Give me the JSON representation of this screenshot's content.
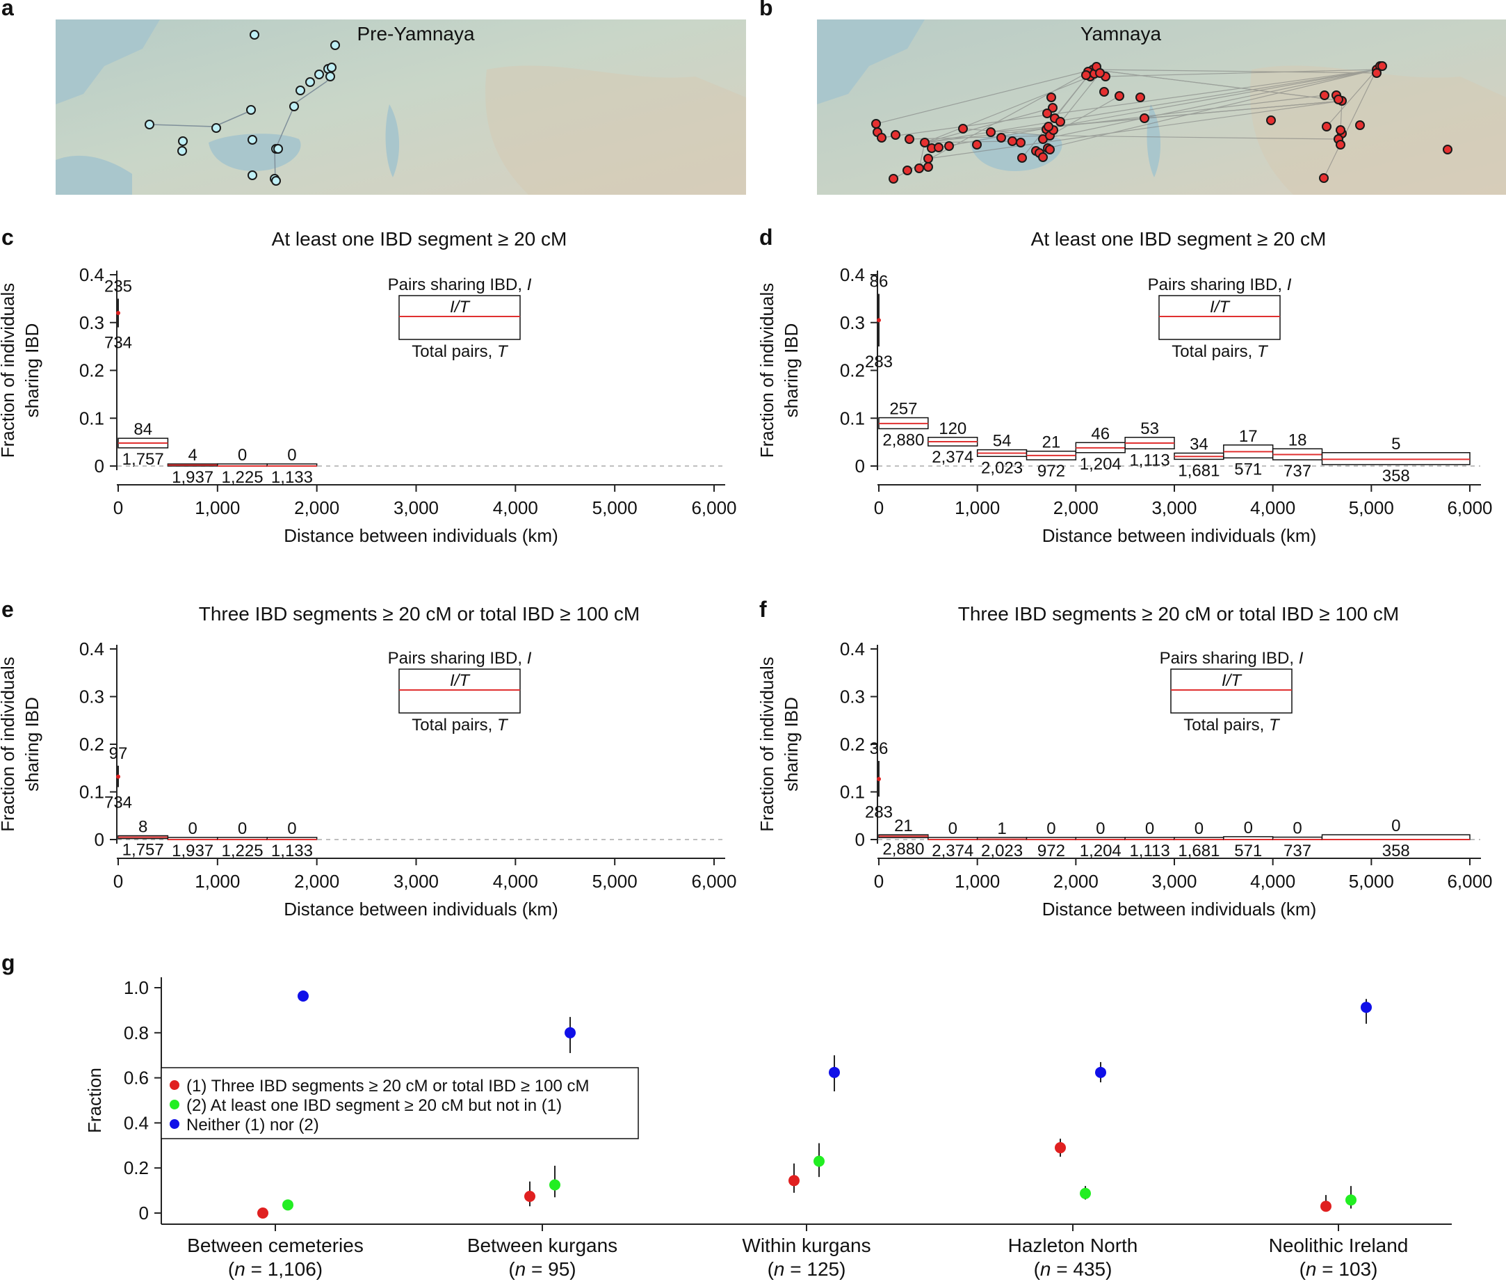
{
  "panels": {
    "a": {
      "letter": "a",
      "title": "Pre-Yamnaya"
    },
    "b": {
      "letter": "b",
      "title": "Yamnaya"
    },
    "c": {
      "letter": "c"
    },
    "d": {
      "letter": "d"
    },
    "e": {
      "letter": "e"
    },
    "f": {
      "letter": "f"
    },
    "g": {
      "letter": "g"
    }
  },
  "legend_box": {
    "top": "Pairs sharing IBD, ",
    "top_var": "I",
    "middle": "I/T",
    "bottom": "Total pairs, ",
    "bottom_var": "T"
  },
  "colors": {
    "red": "#e02020",
    "green": "#22ee22",
    "blue": "#1010e8",
    "map_water": "#a9cbd2",
    "map_land": "#c9d4c4"
  },
  "chart_data": [
    {
      "id": "c",
      "type": "bar",
      "title": "At least one IBD segment ≥ 20 cM",
      "xlabel": "Distance between individuals (km)",
      "ylabel": [
        "Fraction of individuals",
        "sharing IBD"
      ],
      "ylim": [
        0,
        0.4
      ],
      "xlim": [
        0,
        6000
      ],
      "yticks": [
        0,
        0.1,
        0.2,
        0.3,
        0.4
      ],
      "ytick_labels": [
        "0",
        "0.1",
        "0.2",
        "0.3",
        "0.4"
      ],
      "xticks": [
        0,
        1000,
        2000,
        3000,
        4000,
        5000,
        6000
      ],
      "xtick_labels": [
        "0",
        "1,000",
        "2,000",
        "3,000",
        "4,000",
        "5,000",
        "6,000"
      ],
      "point": {
        "x": 0,
        "y": 0.32,
        "ci": [
          0.29,
          0.35
        ],
        "I": "235",
        "T": "734"
      },
      "bins": [
        {
          "x0": 0,
          "x1": 500,
          "y": 0.048,
          "lo": 0.038,
          "hi": 0.058,
          "I": "84",
          "T": "1,757"
        },
        {
          "x0": 500,
          "x1": 1000,
          "y": 0.002,
          "lo": 0.0,
          "hi": 0.004,
          "I": "4",
          "T": "1,937"
        },
        {
          "x0": 1000,
          "x1": 1500,
          "y": 0.0,
          "lo": 0.0,
          "hi": 0.003,
          "I": "0",
          "T": "1,225"
        },
        {
          "x0": 1500,
          "x1": 2000,
          "y": 0.0,
          "lo": 0.0,
          "hi": 0.003,
          "I": "0",
          "T": "1,133"
        }
      ]
    },
    {
      "id": "d",
      "type": "bar",
      "title": "At least one IBD segment ≥ 20 cM",
      "xlabel": "Distance between individuals (km)",
      "ylabel": [
        "Fraction of individuals",
        "sharing IBD"
      ],
      "ylim": [
        0,
        0.4
      ],
      "xlim": [
        0,
        6000
      ],
      "yticks": [
        0,
        0.1,
        0.2,
        0.3,
        0.4
      ],
      "ytick_labels": [
        "0",
        "0.1",
        "0.2",
        "0.3",
        "0.4"
      ],
      "xticks": [
        0,
        1000,
        2000,
        3000,
        4000,
        5000,
        6000
      ],
      "xtick_labels": [
        "0",
        "1,000",
        "2,000",
        "3,000",
        "4,000",
        "5,000",
        "6,000"
      ],
      "point": {
        "x": 0,
        "y": 0.305,
        "ci": [
          0.25,
          0.36
        ],
        "I": "86",
        "T": "283"
      },
      "bins": [
        {
          "x0": 0,
          "x1": 500,
          "y": 0.089,
          "lo": 0.078,
          "hi": 0.101,
          "I": "257",
          "T": "2,880"
        },
        {
          "x0": 500,
          "x1": 1000,
          "y": 0.051,
          "lo": 0.042,
          "hi": 0.06,
          "I": "120",
          "T": "2,374"
        },
        {
          "x0": 1000,
          "x1": 1500,
          "y": 0.027,
          "lo": 0.02,
          "hi": 0.034,
          "I": "54",
          "T": "2,023"
        },
        {
          "x0": 1500,
          "x1": 2000,
          "y": 0.022,
          "lo": 0.013,
          "hi": 0.031,
          "I": "21",
          "T": "972"
        },
        {
          "x0": 2000,
          "x1": 2500,
          "y": 0.038,
          "lo": 0.028,
          "hi": 0.049,
          "I": "46",
          "T": "1,204"
        },
        {
          "x0": 2500,
          "x1": 3000,
          "y": 0.048,
          "lo": 0.036,
          "hi": 0.06,
          "I": "53",
          "T": "1,113"
        },
        {
          "x0": 3000,
          "x1": 3500,
          "y": 0.02,
          "lo": 0.014,
          "hi": 0.027,
          "I": "34",
          "T": "1,681"
        },
        {
          "x0": 3500,
          "x1": 4000,
          "y": 0.03,
          "lo": 0.017,
          "hi": 0.044,
          "I": "17",
          "T": "571"
        },
        {
          "x0": 4000,
          "x1": 4500,
          "y": 0.024,
          "lo": 0.013,
          "hi": 0.036,
          "I": "18",
          "T": "737"
        },
        {
          "x0": 4500,
          "x1": 6000,
          "y": 0.014,
          "lo": 0.003,
          "hi": 0.028,
          "I": "5",
          "T": "358"
        }
      ]
    },
    {
      "id": "e",
      "type": "bar",
      "title": "Three IBD segments ≥ 20 cM or total IBD ≥ 100 cM",
      "xlabel": "Distance between individuals (km)",
      "ylabel": [
        "Fraction of individuals",
        "sharing IBD"
      ],
      "ylim": [
        0,
        0.4
      ],
      "xlim": [
        0,
        6000
      ],
      "yticks": [
        0,
        0.1,
        0.2,
        0.3,
        0.4
      ],
      "ytick_labels": [
        "0",
        "0.1",
        "0.2",
        "0.3",
        "0.4"
      ],
      "xticks": [
        0,
        1000,
        2000,
        3000,
        4000,
        5000,
        6000
      ],
      "xtick_labels": [
        "0",
        "1,000",
        "2,000",
        "3,000",
        "4,000",
        "5,000",
        "6,000"
      ],
      "point": {
        "x": 0,
        "y": 0.132,
        "ci": [
          0.11,
          0.155
        ],
        "I": "97",
        "T": "734"
      },
      "bins": [
        {
          "x0": 0,
          "x1": 500,
          "y": 0.005,
          "lo": 0.002,
          "hi": 0.008,
          "I": "8",
          "T": "1,757"
        },
        {
          "x0": 500,
          "x1": 1000,
          "y": 0.0,
          "lo": 0.0,
          "hi": 0.002,
          "I": "0",
          "T": "1,937"
        },
        {
          "x0": 1000,
          "x1": 1500,
          "y": 0.0,
          "lo": 0.0,
          "hi": 0.003,
          "I": "0",
          "T": "1,225"
        },
        {
          "x0": 1500,
          "x1": 2000,
          "y": 0.0,
          "lo": 0.0,
          "hi": 0.003,
          "I": "0",
          "T": "1,133"
        }
      ]
    },
    {
      "id": "f",
      "type": "bar",
      "title": "Three IBD segments ≥ 20 cM or total IBD ≥ 100 cM",
      "xlabel": "Distance between individuals (km)",
      "ylabel": [
        "Fraction of individuals",
        "sharing IBD"
      ],
      "ylim": [
        0,
        0.4
      ],
      "xlim": [
        0,
        6000
      ],
      "yticks": [
        0,
        0.1,
        0.2,
        0.3,
        0.4
      ],
      "ytick_labels": [
        "0",
        "0.1",
        "0.2",
        "0.3",
        "0.4"
      ],
      "xticks": [
        0,
        1000,
        2000,
        3000,
        4000,
        5000,
        6000
      ],
      "xtick_labels": [
        "0",
        "1,000",
        "2,000",
        "3,000",
        "4,000",
        "5,000",
        "6,000"
      ],
      "point": {
        "x": 0,
        "y": 0.127,
        "ci": [
          0.09,
          0.165
        ],
        "I": "36",
        "T": "283"
      },
      "bins": [
        {
          "x0": 0,
          "x1": 500,
          "y": 0.007,
          "lo": 0.004,
          "hi": 0.01,
          "I": "21",
          "T": "2,880"
        },
        {
          "x0": 500,
          "x1": 1000,
          "y": 0.0,
          "lo": 0.0,
          "hi": 0.002,
          "I": "0",
          "T": "2,374"
        },
        {
          "x0": 1000,
          "x1": 1500,
          "y": 0.0005,
          "lo": 0.0,
          "hi": 0.003,
          "I": "1",
          "T": "2,023"
        },
        {
          "x0": 1500,
          "x1": 2000,
          "y": 0.0,
          "lo": 0.0,
          "hi": 0.004,
          "I": "0",
          "T": "972"
        },
        {
          "x0": 2000,
          "x1": 2500,
          "y": 0.0,
          "lo": 0.0,
          "hi": 0.003,
          "I": "0",
          "T": "1,204"
        },
        {
          "x0": 2500,
          "x1": 3000,
          "y": 0.0,
          "lo": 0.0,
          "hi": 0.003,
          "I": "0",
          "T": "1,113"
        },
        {
          "x0": 3000,
          "x1": 3500,
          "y": 0.0,
          "lo": 0.0,
          "hi": 0.002,
          "I": "0",
          "T": "1,681"
        },
        {
          "x0": 3500,
          "x1": 4000,
          "y": 0.0,
          "lo": 0.0,
          "hi": 0.006,
          "I": "0",
          "T": "571"
        },
        {
          "x0": 4000,
          "x1": 4500,
          "y": 0.0,
          "lo": 0.0,
          "hi": 0.005,
          "I": "0",
          "T": "737"
        },
        {
          "x0": 4500,
          "x1": 6000,
          "y": 0.0,
          "lo": 0.0,
          "hi": 0.01,
          "I": "0",
          "T": "358"
        }
      ]
    },
    {
      "id": "g",
      "type": "scatter",
      "ylabel": "Fraction",
      "ylim": [
        0,
        1.0
      ],
      "yticks": [
        0,
        0.2,
        0.4,
        0.6,
        0.8,
        1.0
      ],
      "ytick_labels": [
        "0",
        "0.2",
        "0.4",
        "0.6",
        "0.8",
        "1.0"
      ],
      "categories": [
        "Between cemeteries",
        "Between kurgans",
        "Within kurgans",
        "Hazleton North",
        "Neolithic Ireland"
      ],
      "category_n": [
        "1,106",
        "95",
        "125",
        "435",
        "103"
      ],
      "n_prefix": "(",
      "n_var": "n",
      "n_eq": " = ",
      "n_suffix": ")",
      "legend": [
        {
          "label": "(1) Three IBD segments ≥ 20 cM or total IBD ≥ 100 cM",
          "color": "#e02020"
        },
        {
          "label": "(2) At least one IBD segment ≥ 20 cM but not in (1)",
          "color": "#22ee22"
        },
        {
          "label": "Neither (1) nor (2)",
          "color": "#1010e8"
        }
      ],
      "series": [
        {
          "name": "(1) Three IBD segments ≥ 20 cM or total IBD ≥ 100 cM",
          "color": "#e02020",
          "values": [
            0.0,
            0.074,
            0.144,
            0.29,
            0.03
          ],
          "ci": [
            [
              0.0,
              0.004
            ],
            [
              0.03,
              0.14
            ],
            [
              0.09,
              0.22
            ],
            [
              0.25,
              0.33
            ],
            [
              0.01,
              0.08
            ]
          ]
        },
        {
          "name": "(2) At least one IBD segment ≥ 20 cM but not in (1)",
          "color": "#22ee22",
          "values": [
            0.036,
            0.125,
            0.23,
            0.087,
            0.058
          ],
          "ci": [
            [
              0.026,
              0.048
            ],
            [
              0.07,
              0.21
            ],
            [
              0.16,
              0.31
            ],
            [
              0.06,
              0.12
            ],
            [
              0.02,
              0.12
            ]
          ]
        },
        {
          "name": "Neither (1) nor (2)",
          "color": "#1010e8",
          "values": [
            0.963,
            0.8,
            0.624,
            0.624,
            0.913
          ],
          "ci": [
            [
              0.95,
              0.975
            ],
            [
              0.71,
              0.87
            ],
            [
              0.54,
              0.7
            ],
            [
              0.58,
              0.67
            ],
            [
              0.84,
              0.95
            ]
          ]
        }
      ]
    }
  ]
}
